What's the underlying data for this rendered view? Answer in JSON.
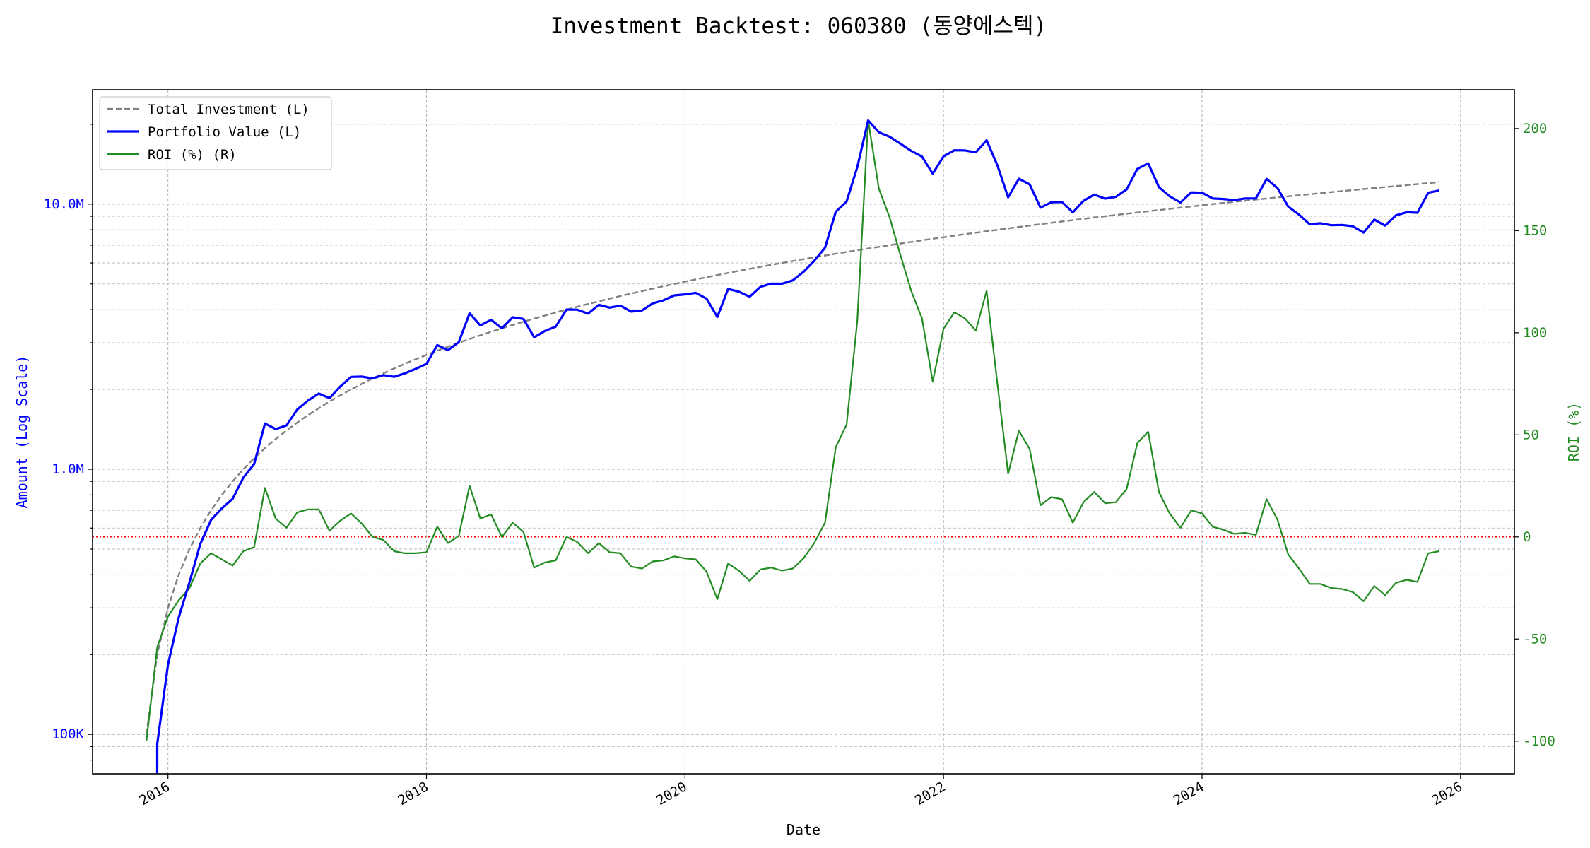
{
  "chart_data": {
    "type": "line",
    "title": "Investment Backtest: 060380 (동양에스텍)",
    "xlabel": "Date",
    "ylabel_left": "Amount (Log Scale)",
    "ylabel_right": "ROI (%)",
    "left_scale": "log",
    "ylim_left": [
      71000,
      27000000
    ],
    "ylim_right": [
      -116,
      219
    ],
    "xlim": [
      "2015-06",
      "2026-06"
    ],
    "grid": true,
    "legend_placement": "top-left",
    "x_ticks": [
      "2016",
      "2018",
      "2020",
      "2022",
      "2024",
      "2026"
    ],
    "left_ticks": [
      {
        "value": 100000,
        "label": "100K"
      },
      {
        "value": 1000000,
        "label": "1.0M"
      },
      {
        "value": 10000000,
        "label": "10.0M"
      }
    ],
    "right_ticks": [
      {
        "value": 200,
        "label": "200"
      },
      {
        "value": 150,
        "label": "150"
      },
      {
        "value": 100,
        "label": "100"
      },
      {
        "value": 50,
        "label": "50"
      },
      {
        "value": 0,
        "label": "0"
      },
      {
        "value": -50,
        "label": "-50"
      },
      {
        "value": -100,
        "label": "-100"
      }
    ],
    "reference_line": {
      "axis": "right",
      "value": 0,
      "color": "#ff0000"
    },
    "x": [
      "2015-11",
      "2015-12",
      "2016-01",
      "2016-02",
      "2016-03",
      "2016-04",
      "2016-05",
      "2016-06",
      "2016-07",
      "2016-08",
      "2016-09",
      "2016-10",
      "2016-11",
      "2016-12",
      "2017-01",
      "2017-02",
      "2017-03",
      "2017-04",
      "2017-05",
      "2017-06",
      "2017-07",
      "2017-08",
      "2017-09",
      "2017-10",
      "2017-11",
      "2017-12",
      "2018-01",
      "2018-02",
      "2018-03",
      "2018-04",
      "2018-05",
      "2018-06",
      "2018-07",
      "2018-08",
      "2018-09",
      "2018-10",
      "2018-11",
      "2018-12",
      "2019-01",
      "2019-02",
      "2019-03",
      "2019-04",
      "2019-05",
      "2019-06",
      "2019-07",
      "2019-08",
      "2019-09",
      "2019-10",
      "2019-11",
      "2019-12",
      "2020-01",
      "2020-02",
      "2020-03",
      "2020-04",
      "2020-05",
      "2020-06",
      "2020-07",
      "2020-08",
      "2020-09",
      "2020-10",
      "2020-11",
      "2020-12",
      "2021-01",
      "2021-02",
      "2021-03",
      "2021-04",
      "2021-05",
      "2021-06",
      "2021-07",
      "2021-08",
      "2021-09",
      "2021-10",
      "2021-11",
      "2021-12",
      "2022-01",
      "2022-02",
      "2022-03",
      "2022-04",
      "2022-05",
      "2022-06",
      "2022-07",
      "2022-08",
      "2022-09",
      "2022-10",
      "2022-11",
      "2022-12",
      "2023-01",
      "2023-02",
      "2023-03",
      "2023-04",
      "2023-05",
      "2023-06",
      "2023-07",
      "2023-08",
      "2023-09",
      "2023-10",
      "2023-11",
      "2023-12",
      "2024-01",
      "2024-02",
      "2024-03",
      "2024-04",
      "2024-05",
      "2024-06",
      "2024-07",
      "2024-08",
      "2024-09",
      "2024-10",
      "2024-11",
      "2024-12",
      "2025-01",
      "2025-02",
      "2025-03",
      "2025-04",
      "2025-05",
      "2025-06",
      "2025-07",
      "2025-08",
      "2025-09",
      "2025-10",
      "2025-11"
    ],
    "series": [
      {
        "name": "Total Investment (L)",
        "axis": "left",
        "color": "#808080",
        "style": "dashed",
        "values": [
          100000,
          200000,
          300000,
          400000,
          500000,
          600000,
          700000,
          800000,
          900000,
          1000000,
          1100000,
          1200000,
          1300000,
          1400000,
          1500000,
          1600000,
          1700000,
          1800000,
          1900000,
          2000000,
          2100000,
          2200000,
          2300000,
          2400000,
          2500000,
          2600000,
          2700000,
          2800000,
          2900000,
          3000000,
          3100000,
          3200000,
          3300000,
          3400000,
          3500000,
          3600000,
          3700000,
          3800000,
          3900000,
          4000000,
          4100000,
          4200000,
          4300000,
          4400000,
          4500000,
          4600000,
          4700000,
          4800000,
          4900000,
          5000000,
          5100000,
          5200000,
          5300000,
          5400000,
          5500000,
          5600000,
          5700000,
          5800000,
          5900000,
          6000000,
          6100000,
          6200000,
          6300000,
          6400000,
          6500000,
          6600000,
          6700000,
          6800000,
          6900000,
          7000000,
          7100000,
          7200000,
          7300000,
          7400000,
          7500000,
          7600000,
          7700000,
          7800000,
          7900000,
          8000000,
          8100000,
          8200000,
          8300000,
          8400000,
          8500000,
          8600000,
          8700000,
          8800000,
          8900000,
          9000000,
          9100000,
          9200000,
          9300000,
          9400000,
          9500000,
          9600000,
          9700000,
          9800000,
          9900000,
          10000000,
          10100000,
          10200000,
          10300000,
          10400000,
          10500000,
          10600000,
          10700000,
          10800000,
          10900000,
          11000000,
          11100000,
          11200000,
          11300000,
          11400000,
          11500000,
          11600000,
          11700000,
          11800000,
          11900000,
          12000000,
          12100000
        ]
      },
      {
        "name": "Portfolio Value (L)",
        "axis": "left",
        "color": "#0000ff",
        "style": "solid",
        "values": [
          0,
          92000,
          183000,
          276000,
          375000,
          522000,
          644000,
          712000,
          774000,
          930000,
          1045000,
          1488000,
          1417000,
          1463000,
          1680000,
          1816000,
          1929500,
          1854000,
          2052000,
          2230000,
          2236500,
          2200000,
          2265500,
          2232000,
          2300000,
          2392000,
          2497500,
          2940000,
          2813000,
          3015000,
          3875000,
          3488000,
          3663000,
          3400000,
          3745000,
          3690000,
          3145000,
          3325000,
          3451500,
          4000000,
          3997500,
          3864000,
          4171000,
          4070000,
          4140000,
          3933000,
          3971500,
          4224000,
          4336500,
          4525000,
          4564500,
          4628000,
          4399000,
          3753000,
          4785000,
          4676000,
          4474500,
          4872000,
          5015000,
          5010000,
          5154500,
          5549000,
          6111000,
          6848000,
          9360000,
          10230000,
          13802000,
          20672000,
          18664500,
          17955000,
          16898000,
          15876000,
          15111000,
          13024000,
          15150000,
          15960000,
          15939000,
          15678000,
          17419500,
          14000000,
          10611000,
          12464000,
          11869000,
          9702000,
          10157500,
          10191000,
          9309000,
          10296000,
          10858000,
          10485000,
          10647000,
          11362000,
          13578000,
          14241000,
          11590000,
          10704000,
          10136500,
          11074000,
          11038500,
          10500000,
          10453500,
          10353000,
          10506000,
          10504000,
          12442500,
          11501000,
          9790500,
          9126000,
          8393000,
          8470000,
          8325000,
          8344000,
          8249000,
          7809000,
          8740000,
          8294000,
          9067500,
          9322000,
          9282000,
          11040000,
          11253000
        ]
      },
      {
        "name": "ROI (%) (R)",
        "axis": "right",
        "color": "#228b22",
        "style": "solid",
        "values": [
          -100,
          -54,
          -39,
          -31,
          -25,
          -13,
          -8,
          -11,
          -14,
          -7,
          -5,
          24,
          9,
          4.5,
          12,
          13.5,
          13.5,
          3,
          8,
          11.5,
          6.5,
          0,
          -1.5,
          -7,
          -8,
          -8,
          -7.5,
          5,
          -3,
          0.5,
          25,
          9,
          11,
          0,
          7,
          2.5,
          -15,
          -12.5,
          -11.5,
          0,
          -2.5,
          -8,
          -3,
          -7.5,
          -8,
          -14.5,
          -15.5,
          -12,
          -11.5,
          -9.5,
          -10.5,
          -11,
          -17,
          -30.5,
          -13,
          -16.5,
          -21.5,
          -16,
          -15,
          -16.5,
          -15.5,
          -10.5,
          -3,
          7,
          44,
          55,
          106,
          204,
          170.5,
          156.5,
          138,
          120.5,
          107,
          76,
          102,
          110,
          107,
          101,
          120.5,
          75,
          31,
          52,
          43,
          15.5,
          19.5,
          18.5,
          7,
          17,
          22,
          16.5,
          17,
          23.5,
          46,
          51.5,
          22,
          11.5,
          4.5,
          13,
          11.5,
          5,
          3.5,
          1.5,
          2,
          1,
          18.5,
          8.5,
          -8.5,
          -15.5,
          -23,
          -23,
          -25,
          -25.5,
          -27,
          -31.5,
          -24,
          -28.5,
          -22.5,
          -21,
          -22,
          -8,
          -7
        ]
      }
    ]
  }
}
